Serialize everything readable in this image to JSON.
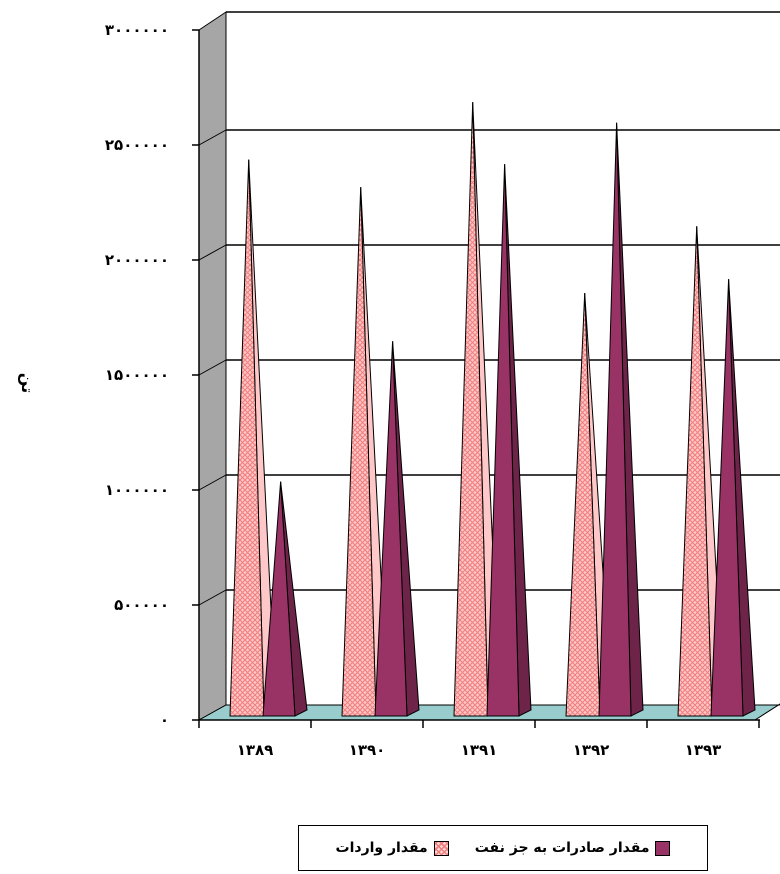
{
  "chart_data": {
    "type": "bar",
    "bar_shape": "3d-cone",
    "title": "",
    "xlabel": "",
    "ylabel": "تن",
    "categories": [
      "۱۳۸۹",
      "۱۳۹۰",
      "۱۳۹۱",
      "۱۳۹۲",
      "۱۳۹۳"
    ],
    "series": [
      {
        "name": "مقدار واردات",
        "values": [
          2380000,
          2260000,
          2630000,
          1800000,
          2090000
        ]
      },
      {
        "name": "مقدار صادرات به جز نفت",
        "values": [
          980000,
          1590000,
          2360000,
          2540000,
          1860000
        ]
      }
    ],
    "ylim": [
      0,
      3000000
    ],
    "yticks": [
      0,
      500000,
      1000000,
      1500000,
      2000000,
      2500000,
      3000000
    ],
    "ytick_labels": [
      "۰",
      "۵۰۰۰۰۰",
      "۱۰۰۰۰۰۰",
      "۱۵۰۰۰۰۰",
      "۲۰۰۰۰۰۰",
      "۲۵۰۰۰۰۰",
      "۳۰۰۰۰۰۰"
    ],
    "grid": true,
    "legend_position": "bottom",
    "colors": {
      "series0": "#ffc8c8",
      "series0_pattern": "#f08080",
      "series1": "#993366",
      "wall": "#a6a6a6",
      "floor": "#99cccc"
    }
  }
}
